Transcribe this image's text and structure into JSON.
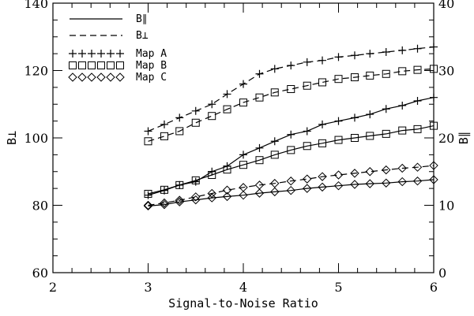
{
  "chart_data": {
    "type": "line",
    "xlabel": "Signal-to-Noise Ratio",
    "ylabel_left": "B⊥",
    "ylabel_right": "B∥",
    "xlim": [
      2,
      6
    ],
    "ylim_left": [
      60,
      140
    ],
    "ylim_right": [
      0,
      40
    ],
    "xticks": [
      2,
      3,
      4,
      5,
      6
    ],
    "yticks_left": [
      60,
      80,
      100,
      120,
      140
    ],
    "yticks_right": [
      0,
      10,
      20,
      30,
      40
    ],
    "grid": false,
    "legend": {
      "placement": "top-left",
      "entries": [
        {
          "label": "B∥",
          "style": "solid-line"
        },
        {
          "label": "B⊥",
          "style": "dashed-line"
        },
        {
          "label": "Map A",
          "marker": "plus"
        },
        {
          "label": "Map B",
          "marker": "square"
        },
        {
          "label": "Map C",
          "marker": "diamond"
        }
      ]
    },
    "x": [
      3.0,
      3.17,
      3.33,
      3.5,
      3.67,
      3.83,
      4.0,
      4.17,
      4.33,
      4.5,
      4.67,
      4.83,
      5.0,
      5.17,
      5.33,
      5.5,
      5.67,
      5.83,
      6.0
    ],
    "series": [
      {
        "name": "Map A",
        "axis": "left",
        "line": "dashed",
        "marker": "plus",
        "values": [
          102,
          104,
          106,
          108,
          110,
          113,
          116,
          119,
          120.5,
          121.5,
          122.5,
          123,
          124,
          124.5,
          125,
          125.5,
          126,
          126.5,
          127
        ]
      },
      {
        "name": "Map B",
        "axis": "left",
        "line": "dashed",
        "marker": "square",
        "values": [
          99,
          100.5,
          102,
          104.5,
          106.5,
          108.5,
          110.5,
          112,
          113.5,
          114.5,
          115.5,
          116.5,
          117.5,
          118,
          118.5,
          119,
          119.8,
          120.2,
          120.5
        ]
      },
      {
        "name": "Map C",
        "axis": "left",
        "line": "dashed",
        "marker": "diamond",
        "values": [
          80,
          80.7,
          81.5,
          82.5,
          83.5,
          84.5,
          85.3,
          86,
          86.5,
          87.2,
          87.8,
          88.5,
          89,
          89.5,
          90,
          90.5,
          91,
          91.3,
          91.8
        ]
      },
      {
        "name": "Map A",
        "axis": "right",
        "line": "solid",
        "marker": "plus",
        "values": [
          11.5,
          12.2,
          13,
          13.5,
          15,
          15.8,
          17.5,
          18.5,
          19.5,
          20.5,
          21,
          22,
          22.5,
          23,
          23.5,
          24.3,
          24.8,
          25.5,
          26
        ]
      },
      {
        "name": "Map B",
        "axis": "right",
        "line": "solid",
        "marker": "square",
        "values": [
          11.7,
          12.3,
          13,
          13.7,
          14.5,
          15.3,
          16,
          16.7,
          17.5,
          18.2,
          18.8,
          19.2,
          19.7,
          20,
          20.3,
          20.6,
          21.1,
          21.3,
          21.8
        ]
      },
      {
        "name": "Map C",
        "axis": "right",
        "line": "solid",
        "marker": "diamond",
        "values": [
          9.9,
          10.1,
          10.5,
          10.8,
          11.1,
          11.3,
          11.5,
          11.8,
          12,
          12.2,
          12.5,
          12.7,
          12.9,
          13.1,
          13.2,
          13.3,
          13.5,
          13.6,
          13.8
        ]
      }
    ]
  }
}
